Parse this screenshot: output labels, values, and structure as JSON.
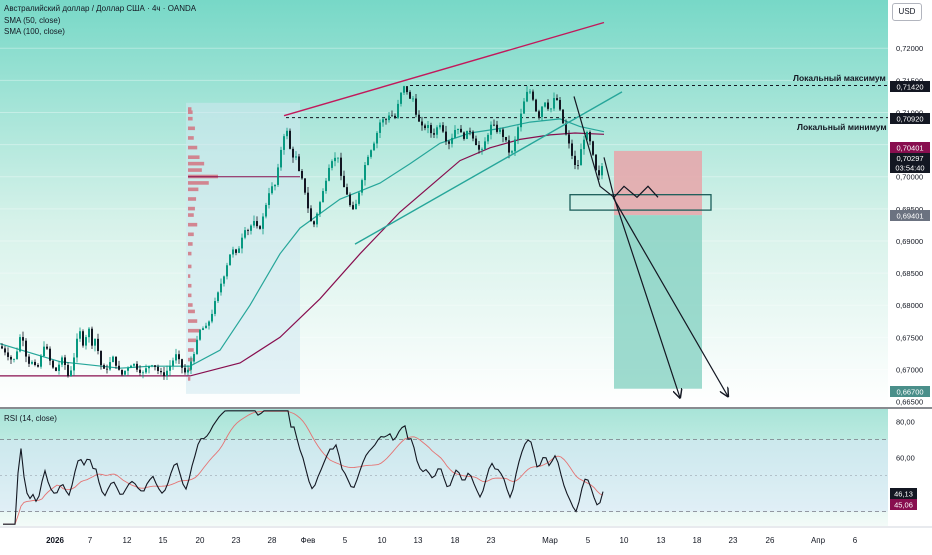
{
  "header": {
    "symbol_title": "Австралийский доллар / Доллар США · 4ч · OANDA",
    "sma50_label": "SMA (50, close)",
    "sma100_label": "SMA (100, close)",
    "currency_button": "USD"
  },
  "annotations": {
    "local_max": "Локальный максимум",
    "local_min": "Локальный минимум"
  },
  "price_tags": {
    "local_max_price": "0,71420",
    "local_min_price": "0,70920",
    "stop_price": "0,70401",
    "current_price": "0,70297",
    "countdown": "03:54:40",
    "entry_price": "0,69401",
    "target_price": "0,66700"
  },
  "rsi": {
    "label": "RSI (14, close)",
    "value_main": "46,13",
    "value_ma": "45,06",
    "ticks": [
      "80,00",
      "60,00"
    ],
    "tick_values": [
      80,
      60
    ],
    "upper_band": 70,
    "lower_band": 30,
    "ylim": [
      22,
      87
    ]
  },
  "chart_data": {
    "type": "candlestick",
    "title": "Австралийский доллар / Доллар США · 4ч · OANDA",
    "ylim": [
      0.664,
      0.7275
    ],
    "y_ticks": [
      0.665,
      0.67,
      0.675,
      0.68,
      0.685,
      0.69,
      0.695,
      0.7,
      0.705,
      0.71,
      0.715,
      0.72
    ],
    "y_tick_labels": [
      "0,66500",
      "0,67000",
      "0,67500",
      "0,68000",
      "0,68500",
      "0,69000",
      "0,69500",
      "0,70000",
      "0,70500",
      "0,71000",
      "0,71500",
      "0,72000"
    ],
    "x_tick_labels": [
      "2026",
      "7",
      "12",
      "15",
      "20",
      "23",
      "28",
      "Фев",
      "5",
      "10",
      "13",
      "18",
      "23",
      "Мар",
      "5",
      "10",
      "13",
      "18",
      "23",
      "26",
      "Апр",
      "6"
    ],
    "close_path": [
      [
        0,
        0.6736
      ],
      [
        5,
        0.6728
      ],
      [
        10,
        0.6718
      ],
      [
        13,
        0.6712
      ],
      [
        16,
        0.6722
      ],
      [
        19,
        0.6745
      ],
      [
        22,
        0.676
      ],
      [
        24,
        0.6735
      ],
      [
        27,
        0.6716
      ],
      [
        30,
        0.6708
      ],
      [
        33,
        0.6712
      ],
      [
        36,
        0.67
      ],
      [
        39,
        0.6706
      ],
      [
        42,
        0.6726
      ],
      [
        45,
        0.6744
      ],
      [
        47,
        0.673
      ],
      [
        50,
        0.6713
      ],
      [
        53,
        0.6702
      ],
      [
        56,
        0.6698
      ],
      [
        59,
        0.6708
      ],
      [
        62,
        0.6716
      ],
      [
        65,
        0.6707
      ],
      [
        68,
        0.669
      ],
      [
        71,
        0.67
      ],
      [
        74,
        0.672
      ],
      [
        77,
        0.6745
      ],
      [
        80,
        0.6758
      ],
      [
        83,
        0.674
      ],
      [
        86,
        0.6752
      ],
      [
        89,
        0.6762
      ],
      [
        92,
        0.674
      ],
      [
        95,
        0.6748
      ],
      [
        98,
        0.6729
      ],
      [
        101,
        0.6707
      ],
      [
        105,
        0.6696
      ],
      [
        109,
        0.6708
      ],
      [
        113,
        0.6718
      ],
      [
        117,
        0.6705
      ],
      [
        121,
        0.669
      ],
      [
        125,
        0.6698
      ],
      [
        129,
        0.6706
      ],
      [
        133,
        0.671
      ],
      [
        138,
        0.67
      ],
      [
        143,
        0.6694
      ],
      [
        148,
        0.6705
      ],
      [
        153,
        0.671
      ],
      [
        158,
        0.6698
      ],
      [
        163,
        0.669
      ],
      [
        168,
        0.67
      ],
      [
        172,
        0.6712
      ],
      [
        176,
        0.6722
      ],
      [
        180,
        0.671
      ],
      [
        184,
        0.6696
      ],
      [
        187,
        0.6693
      ],
      [
        190,
        0.6708
      ],
      [
        193,
        0.6722
      ],
      [
        196,
        0.6736
      ],
      [
        199,
        0.6758
      ],
      [
        202,
        0.6765
      ],
      [
        205,
        0.6762
      ],
      [
        208,
        0.6772
      ],
      [
        211,
        0.6782
      ],
      [
        214,
        0.68
      ],
      [
        217,
        0.6812
      ],
      [
        220,
        0.683
      ],
      [
        223,
        0.6842
      ],
      [
        226,
        0.6858
      ],
      [
        229,
        0.6875
      ],
      [
        232,
        0.689
      ],
      [
        235,
        0.6876
      ],
      [
        238,
        0.6885
      ],
      [
        241,
        0.69
      ],
      [
        244,
        0.6922
      ],
      [
        247,
        0.6915
      ],
      [
        250,
        0.692
      ],
      [
        253,
        0.6932
      ],
      [
        256,
        0.6922
      ],
      [
        259,
        0.6917
      ],
      [
        262,
        0.693
      ],
      [
        265,
        0.695
      ],
      [
        268,
        0.6972
      ],
      [
        271,
        0.6985
      ],
      [
        274,
        0.698
      ],
      [
        277,
        0.7
      ],
      [
        280,
        0.7035
      ],
      [
        283,
        0.7058
      ],
      [
        286,
        0.708
      ],
      [
        289,
        0.705
      ],
      [
        292,
        0.7028
      ],
      [
        295,
        0.704
      ],
      [
        298,
        0.701
      ],
      [
        301,
        0.7
      ],
      [
        304,
        0.6985
      ],
      [
        307,
        0.696
      ],
      [
        310,
        0.6935
      ],
      [
        313,
        0.692
      ],
      [
        316,
        0.6938
      ],
      [
        319,
        0.6955
      ],
      [
        322,
        0.697
      ],
      [
        325,
        0.699
      ],
      [
        328,
        0.701
      ],
      [
        331,
        0.703
      ],
      [
        334,
        0.702
      ],
      [
        337,
        0.7045
      ],
      [
        340,
        0.7005
      ],
      [
        343,
        0.6985
      ],
      [
        346,
        0.698
      ],
      [
        349,
        0.696
      ],
      [
        352,
        0.6945
      ],
      [
        355,
        0.695
      ],
      [
        358,
        0.697
      ],
      [
        361,
        0.699
      ],
      [
        364,
        0.7012
      ],
      [
        367,
        0.703
      ],
      [
        370,
        0.704
      ],
      [
        373,
        0.705
      ],
      [
        376,
        0.7062
      ],
      [
        379,
        0.7082
      ],
      [
        382,
        0.709
      ],
      [
        385,
        0.7085
      ],
      [
        388,
        0.7095
      ],
      [
        391,
        0.71
      ],
      [
        394,
        0.7085
      ],
      [
        397,
        0.7105
      ],
      [
        400,
        0.7125
      ],
      [
        403,
        0.7138
      ],
      [
        406,
        0.7142
      ],
      [
        409,
        0.7115
      ],
      [
        412,
        0.713
      ],
      [
        415,
        0.7105
      ],
      [
        418,
        0.7088
      ],
      [
        421,
        0.7078
      ],
      [
        424,
        0.7075
      ],
      [
        427,
        0.7082
      ],
      [
        430,
        0.707
      ],
      [
        433,
        0.7065
      ],
      [
        436,
        0.7072
      ],
      [
        439,
        0.7085
      ],
      [
        442,
        0.7078
      ],
      [
        445,
        0.7062
      ],
      [
        448,
        0.705
      ],
      [
        451,
        0.7058
      ],
      [
        454,
        0.707
      ],
      [
        457,
        0.708
      ],
      [
        460,
        0.707
      ],
      [
        463,
        0.706
      ],
      [
        466,
        0.7065
      ],
      [
        469,
        0.7075
      ],
      [
        472,
        0.7065
      ],
      [
        475,
        0.7055
      ],
      [
        478,
        0.7045
      ],
      [
        481,
        0.7035
      ],
      [
        484,
        0.705
      ],
      [
        487,
        0.7062
      ],
      [
        490,
        0.7078
      ],
      [
        493,
        0.7082
      ],
      [
        496,
        0.707
      ],
      [
        499,
        0.7075
      ],
      [
        502,
        0.7065
      ],
      [
        505,
        0.706
      ],
      [
        508,
        0.7042
      ],
      [
        511,
        0.7032
      ],
      [
        514,
        0.705
      ],
      [
        517,
        0.707
      ],
      [
        520,
        0.709
      ],
      [
        523,
        0.711
      ],
      [
        526,
        0.7128
      ],
      [
        529,
        0.7135
      ],
      [
        532,
        0.7128
      ],
      [
        535,
        0.711
      ],
      [
        538,
        0.709
      ],
      [
        541,
        0.7105
      ],
      [
        544,
        0.712
      ],
      [
        547,
        0.7112
      ],
      [
        550,
        0.71
      ],
      [
        553,
        0.7118
      ],
      [
        556,
        0.7125
      ],
      [
        559,
        0.7108
      ],
      [
        562,
        0.709
      ],
      [
        565,
        0.707
      ],
      [
        568,
        0.7055
      ],
      [
        571,
        0.704
      ],
      [
        574,
        0.702
      ],
      [
        577,
        0.701
      ],
      [
        580,
        0.7035
      ],
      [
        583,
        0.7055
      ],
      [
        586,
        0.707
      ],
      [
        589,
        0.706
      ],
      [
        592,
        0.704
      ],
      [
        595,
        0.7015
      ],
      [
        598,
        0.6995
      ],
      [
        601,
        0.701
      ],
      [
        604,
        0.703
      ]
    ],
    "sma_50": [
      [
        0,
        0.674
      ],
      [
        60,
        0.6712
      ],
      [
        120,
        0.6702
      ],
      [
        150,
        0.6705
      ],
      [
        190,
        0.6705
      ],
      [
        220,
        0.673
      ],
      [
        250,
        0.68
      ],
      [
        280,
        0.688
      ],
      [
        300,
        0.692
      ],
      [
        340,
        0.6965
      ],
      [
        380,
        0.699
      ],
      [
        410,
        0.702
      ],
      [
        440,
        0.7052
      ],
      [
        470,
        0.7068
      ],
      [
        500,
        0.7075
      ],
      [
        530,
        0.7085
      ],
      [
        560,
        0.709
      ],
      [
        580,
        0.7078
      ],
      [
        604,
        0.707
      ]
    ],
    "sma_100": [
      [
        0,
        0.669
      ],
      [
        60,
        0.669
      ],
      [
        120,
        0.669
      ],
      [
        190,
        0.669
      ],
      [
        240,
        0.671
      ],
      [
        280,
        0.675
      ],
      [
        320,
        0.681
      ],
      [
        360,
        0.688
      ],
      [
        400,
        0.6945
      ],
      [
        430,
        0.6985
      ],
      [
        460,
        0.7025
      ],
      [
        490,
        0.7045
      ],
      [
        520,
        0.7058
      ],
      [
        550,
        0.7065
      ],
      [
        575,
        0.7068
      ],
      [
        604,
        0.7066
      ]
    ],
    "trendlines": {
      "upper_resistance": [
        [
          284,
          0.7095
        ],
        [
          604,
          0.724
        ]
      ],
      "rising_support": [
        [
          355,
          0.6895
        ],
        [
          622,
          0.7132
        ]
      ]
    },
    "levels": {
      "local_max": 0.7142,
      "local_min": 0.7092,
      "stop": 0.70401,
      "entry": 0.69401,
      "target": 0.667
    },
    "position": {
      "entry": 0.69401,
      "stop": 0.70401,
      "target": 0.667,
      "x_range": [
        614,
        702
      ]
    },
    "entry_zone": [
      0.6948,
      0.6972
    ],
    "projection_paths": [
      [
        [
          574,
          0.7125
        ],
        [
          600,
          0.6985
        ],
        [
          614,
          0.6968
        ],
        [
          624,
          0.6985
        ],
        [
          637,
          0.6968
        ],
        [
          648,
          0.6985
        ],
        [
          658,
          0.6968
        ]
      ],
      [
        [
          604,
          0.703
        ],
        [
          614,
          0.6968
        ],
        [
          680,
          0.6656
        ]
      ],
      [
        [
          613,
          0.6968
        ],
        [
          728,
          0.6658
        ]
      ]
    ],
    "volume_profile": [
      {
        "price": 0.7105,
        "vol": 3
      },
      {
        "price": 0.71,
        "vol": 4
      },
      {
        "price": 0.709,
        "vol": 4
      },
      {
        "price": 0.7075,
        "vol": 6
      },
      {
        "price": 0.706,
        "vol": 5
      },
      {
        "price": 0.7045,
        "vol": 8
      },
      {
        "price": 0.703,
        "vol": 10
      },
      {
        "price": 0.702,
        "vol": 14
      },
      {
        "price": 0.701,
        "vol": 12
      },
      {
        "price": 0.7,
        "vol": 26
      },
      {
        "price": 0.699,
        "vol": 18
      },
      {
        "price": 0.698,
        "vol": 9
      },
      {
        "price": 0.6965,
        "vol": 7
      },
      {
        "price": 0.695,
        "vol": 6
      },
      {
        "price": 0.694,
        "vol": 5
      },
      {
        "price": 0.6925,
        "vol": 8
      },
      {
        "price": 0.691,
        "vol": 5
      },
      {
        "price": 0.6895,
        "vol": 4
      },
      {
        "price": 0.688,
        "vol": 3
      },
      {
        "price": 0.686,
        "vol": 3
      },
      {
        "price": 0.6845,
        "vol": 2
      },
      {
        "price": 0.683,
        "vol": 3
      },
      {
        "price": 0.6815,
        "vol": 3
      },
      {
        "price": 0.68,
        "vol": 4
      },
      {
        "price": 0.679,
        "vol": 6
      },
      {
        "price": 0.6775,
        "vol": 8
      },
      {
        "price": 0.676,
        "vol": 11
      },
      {
        "price": 0.6745,
        "vol": 7
      },
      {
        "price": 0.673,
        "vol": 5
      },
      {
        "price": 0.6715,
        "vol": 4
      },
      {
        "price": 0.67,
        "vol": 3
      },
      {
        "price": 0.6685,
        "vol": 2
      }
    ],
    "colors": {
      "bull": "#089981",
      "bear": "#131722",
      "sma50": "#26a69a",
      "sma100": "#880e4f",
      "resistance": "#c2185b",
      "support": "#26a69a",
      "stop_zone": "#e8a5a9",
      "target_zone": "#7fcfbf",
      "volume_profile": "#d17a86",
      "volume_bg": "#cfe8f1",
      "rsi_line": "#131722",
      "rsi_ma": "#e57373",
      "rsi_band": "#d9e8f8",
      "price_tag_dark": "#131722",
      "price_tag_red": "#880e4f",
      "price_tag_teal": "#4a8f8a"
    }
  }
}
